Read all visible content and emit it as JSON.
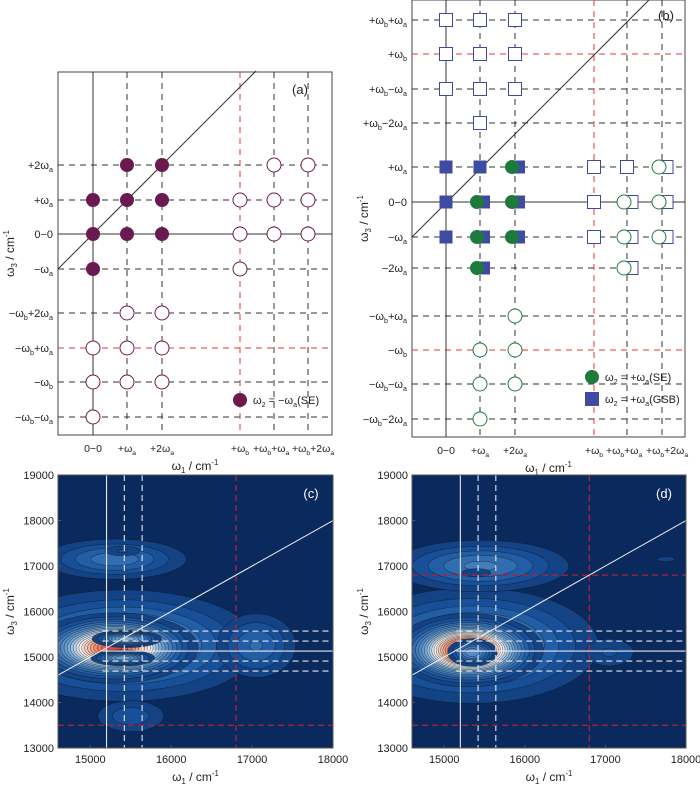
{
  "chart_data": [
    {
      "id": "a",
      "type": "scatter",
      "panel_label": "(a)",
      "xlabel": "ω1 / cm-1",
      "ylabel": "ω3 / cm-1",
      "columns": [
        "0−0",
        "+ωa",
        "+2ωa",
        "+ωb",
        "+ωb+ωa",
        "+ωb+2ωa"
      ],
      "rows": [
        "+2ωa",
        "+ωa",
        "0−0",
        "−ωa",
        "−ωb+2ωa",
        "−ωb+ωa",
        "−ωb",
        "−ωb−ωa"
      ],
      "solid_col": 0,
      "solid_row": 2,
      "red_cols": [
        3
      ],
      "red_rows": [
        5
      ],
      "legend": [
        {
          "marker": "filled-circle",
          "label": "ω2 = −ωa(SE)",
          "color": "#6b1a4f"
        }
      ],
      "markers": [
        {
          "row": 0,
          "col": 1,
          "type": "fc"
        },
        {
          "row": 0,
          "col": 2,
          "type": "fc"
        },
        {
          "row": 0,
          "col": 4,
          "type": "oc"
        },
        {
          "row": 0,
          "col": 5,
          "type": "oc"
        },
        {
          "row": 1,
          "col": 0,
          "type": "fc"
        },
        {
          "row": 1,
          "col": 1,
          "type": "fc"
        },
        {
          "row": 1,
          "col": 2,
          "type": "fc"
        },
        {
          "row": 1,
          "col": 3,
          "type": "oc"
        },
        {
          "row": 1,
          "col": 4,
          "type": "oc"
        },
        {
          "row": 1,
          "col": 5,
          "type": "oc"
        },
        {
          "row": 2,
          "col": 0,
          "type": "fc"
        },
        {
          "row": 2,
          "col": 1,
          "type": "fc"
        },
        {
          "row": 2,
          "col": 2,
          "type": "fc"
        },
        {
          "row": 2,
          "col": 3,
          "type": "oc"
        },
        {
          "row": 2,
          "col": 4,
          "type": "oc"
        },
        {
          "row": 2,
          "col": 5,
          "type": "oc"
        },
        {
          "row": 3,
          "col": 0,
          "type": "fc"
        },
        {
          "row": 3,
          "col": 3,
          "type": "oc"
        },
        {
          "row": 4,
          "col": 1,
          "type": "oc"
        },
        {
          "row": 4,
          "col": 2,
          "type": "oc"
        },
        {
          "row": 5,
          "col": 0,
          "type": "oc"
        },
        {
          "row": 5,
          "col": 1,
          "type": "oc"
        },
        {
          "row": 5,
          "col": 2,
          "type": "oc"
        },
        {
          "row": 6,
          "col": 0,
          "type": "oc"
        },
        {
          "row": 6,
          "col": 1,
          "type": "oc"
        },
        {
          "row": 6,
          "col": 2,
          "type": "oc"
        },
        {
          "row": 7,
          "col": 0,
          "type": "oc"
        }
      ],
      "colors": {
        "circle": "#6b1a4f"
      }
    },
    {
      "id": "b",
      "type": "scatter",
      "panel_label": "(b)",
      "xlabel": "ω1 / cm-1",
      "ylabel": "ω3 / cm-1",
      "columns": [
        "0−0",
        "+ωa",
        "+2ωa",
        "+ωb",
        "+ωb+ωa",
        "+ωb+2ωa"
      ],
      "rows": [
        "+ωb+ωa",
        "+ωb",
        "+ωb−ωa",
        "+ωb−2ωa",
        "+ωa",
        "0−0",
        "−ωa",
        "−2ωa",
        "−ωb+ωa",
        "−ωb",
        "−ωb−ωa",
        "−ωb−2ωa"
      ],
      "solid_col": 0,
      "solid_row": 5,
      "red_cols": [
        3
      ],
      "red_rows": [
        1,
        9
      ],
      "legend": [
        {
          "marker": "filled-circle",
          "label": "ω2 = +ωa(SE)",
          "color": "#1e7a3c"
        },
        {
          "marker": "filled-square",
          "label": "ω2 = +ωa(GSB)",
          "color": "#3f4aa3"
        }
      ],
      "markers": [
        {
          "row": 0,
          "col": 0,
          "type": "os"
        },
        {
          "row": 0,
          "col": 1,
          "type": "os"
        },
        {
          "row": 0,
          "col": 2,
          "type": "os"
        },
        {
          "row": 1,
          "col": 0,
          "type": "os"
        },
        {
          "row": 1,
          "col": 1,
          "type": "os"
        },
        {
          "row": 1,
          "col": 2,
          "type": "os"
        },
        {
          "row": 2,
          "col": 0,
          "type": "os"
        },
        {
          "row": 2,
          "col": 1,
          "type": "os"
        },
        {
          "row": 2,
          "col": 2,
          "type": "os"
        },
        {
          "row": 3,
          "col": 1,
          "type": "os"
        },
        {
          "row": 4,
          "col": 0,
          "type": "fs"
        },
        {
          "row": 4,
          "col": 1,
          "type": "fs"
        },
        {
          "row": 4,
          "col": 2,
          "type": "fcfs"
        },
        {
          "row": 4,
          "col": 3,
          "type": "os"
        },
        {
          "row": 4,
          "col": 4,
          "type": "os"
        },
        {
          "row": 4,
          "col": 5,
          "type": "ocos"
        },
        {
          "row": 5,
          "col": 0,
          "type": "fs"
        },
        {
          "row": 5,
          "col": 1,
          "type": "fcfs"
        },
        {
          "row": 5,
          "col": 2,
          "type": "fcfs"
        },
        {
          "row": 5,
          "col": 3,
          "type": "os"
        },
        {
          "row": 5,
          "col": 4,
          "type": "ocos"
        },
        {
          "row": 5,
          "col": 5,
          "type": "ocos"
        },
        {
          "row": 6,
          "col": 0,
          "type": "fs"
        },
        {
          "row": 6,
          "col": 1,
          "type": "fcfs"
        },
        {
          "row": 6,
          "col": 2,
          "type": "fcfs"
        },
        {
          "row": 6,
          "col": 3,
          "type": "os"
        },
        {
          "row": 6,
          "col": 4,
          "type": "ocos"
        },
        {
          "row": 6,
          "col": 5,
          "type": "ocos"
        },
        {
          "row": 7,
          "col": 1,
          "type": "fcfs"
        },
        {
          "row": 7,
          "col": 4,
          "type": "ocos"
        },
        {
          "row": 8,
          "col": 2,
          "type": "oc"
        },
        {
          "row": 9,
          "col": 1,
          "type": "oc"
        },
        {
          "row": 9,
          "col": 2,
          "type": "oc"
        },
        {
          "row": 10,
          "col": 1,
          "type": "oc"
        },
        {
          "row": 10,
          "col": 2,
          "type": "oc"
        },
        {
          "row": 11,
          "col": 1,
          "type": "oc"
        }
      ],
      "colors": {
        "circle": "#1e7a3c",
        "square": "#3f4aa3"
      }
    },
    {
      "id": "c",
      "type": "heatmap",
      "panel_label": "(c)",
      "xlabel": "ω1 / cm-1",
      "ylabel": "ω3 / cm-1",
      "xlim": [
        14600,
        18000
      ],
      "ylim": [
        13000,
        19000
      ],
      "xticks": [
        15000,
        16000,
        17000,
        18000
      ],
      "yticks": [
        13000,
        14000,
        15000,
        16000,
        17000,
        18000,
        19000
      ],
      "vlines": [
        {
          "x": 15200,
          "style": "solid"
        },
        {
          "x": 15420,
          "style": "dashed"
        },
        {
          "x": 15640,
          "style": "dashed"
        },
        {
          "x": 16800,
          "style": "red-dashed"
        }
      ],
      "hlines": [
        {
          "y": 15130,
          "style": "solid",
          "from": 15150
        },
        {
          "y": 15570,
          "style": "dashed",
          "from": 15150
        },
        {
          "y": 15350,
          "style": "dashed",
          "from": 15150
        },
        {
          "y": 14910,
          "style": "dashed",
          "from": 15150
        },
        {
          "y": 14690,
          "style": "dashed",
          "from": 15150
        },
        {
          "y": 13500,
          "style": "red-dashed",
          "from": 14600
        }
      ],
      "peaks": [
        {
          "x": 15400,
          "y": 15250,
          "sx": 850,
          "sy": 620,
          "amp": 0.28
        },
        {
          "x": 15300,
          "y": 15200,
          "sx": 430,
          "sy": 320,
          "amp": 0.72
        },
        {
          "x": 15450,
          "y": 15400,
          "sx": 210,
          "sy": 95,
          "amp": 0.32
        },
        {
          "x": 15400,
          "y": 14980,
          "sx": 200,
          "sy": 90,
          "amp": 0.28
        },
        {
          "x": 15300,
          "y": 17150,
          "sx": 520,
          "sy": 260,
          "amp": 0.17
        },
        {
          "x": 15400,
          "y": 17330,
          "sx": 180,
          "sy": 90,
          "amp": 0.08
        },
        {
          "x": 17050,
          "y": 15250,
          "sx": 300,
          "sy": 430,
          "amp": 0.15
        },
        {
          "x": 15500,
          "y": 13700,
          "sx": 300,
          "sy": 250,
          "amp": 0.1
        }
      ]
    },
    {
      "id": "d",
      "type": "heatmap",
      "panel_label": "(d)",
      "xlabel": "ω1 / cm-1",
      "ylabel": "ω3 / cm-1",
      "xlim": [
        14600,
        18000
      ],
      "ylim": [
        13000,
        19000
      ],
      "xticks": [
        15000,
        16000,
        17000,
        18000
      ],
      "yticks": [
        13000,
        14000,
        15000,
        16000,
        17000,
        18000,
        19000
      ],
      "vlines": [
        {
          "x": 15200,
          "style": "solid"
        },
        {
          "x": 15420,
          "style": "dashed"
        },
        {
          "x": 15640,
          "style": "dashed"
        },
        {
          "x": 16800,
          "style": "red-dashed"
        }
      ],
      "hlines": [
        {
          "y": 15130,
          "style": "solid",
          "from": 15150
        },
        {
          "y": 15570,
          "style": "dashed",
          "from": 15150
        },
        {
          "y": 15350,
          "style": "dashed",
          "from": 15150
        },
        {
          "y": 14910,
          "style": "dashed",
          "from": 15150
        },
        {
          "y": 14690,
          "style": "dashed",
          "from": 15150
        },
        {
          "y": 16800,
          "style": "red-dashed",
          "from": 14600
        },
        {
          "y": 13500,
          "style": "red-dashed",
          "from": 14600
        }
      ],
      "peaks": [
        {
          "x": 15350,
          "y": 15250,
          "sx": 800,
          "sy": 650,
          "amp": 0.27
        },
        {
          "x": 15300,
          "y": 15150,
          "sx": 380,
          "sy": 330,
          "amp": 0.8
        },
        {
          "x": 15350,
          "y": 15100,
          "sx": 160,
          "sy": 160,
          "amp": 0.25
        },
        {
          "x": 15450,
          "y": 17000,
          "sx": 620,
          "sy": 320,
          "amp": 0.19
        },
        {
          "x": 15400,
          "y": 16850,
          "sx": 200,
          "sy": 100,
          "amp": 0.06
        },
        {
          "x": 17050,
          "y": 15100,
          "sx": 250,
          "sy": 250,
          "amp": 0.08
        },
        {
          "x": 17750,
          "y": 17150,
          "sx": 120,
          "sy": 60,
          "amp": 0.06
        }
      ]
    }
  ]
}
